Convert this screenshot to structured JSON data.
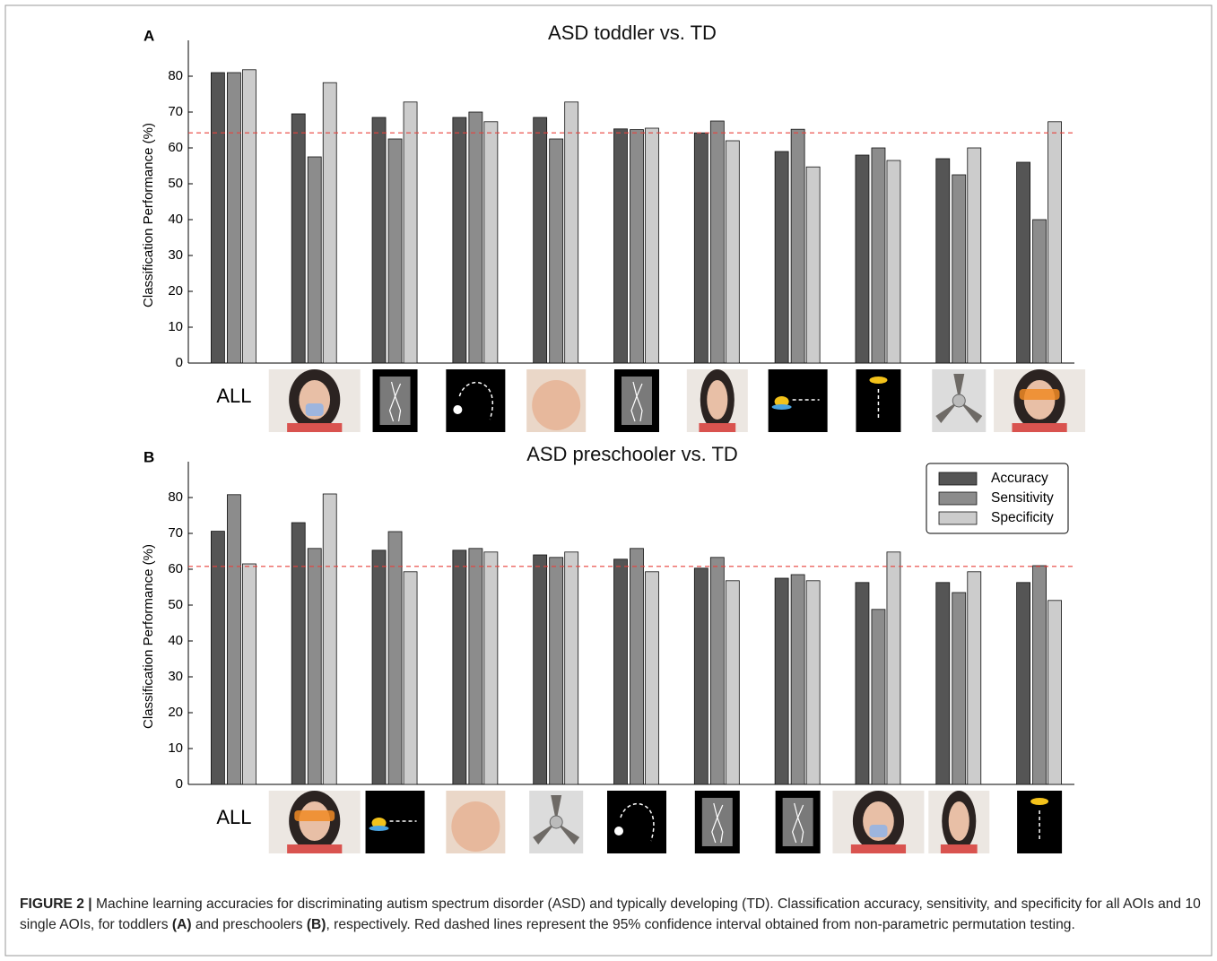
{
  "chart_data": [
    {
      "type": "bar",
      "panel_label": "A",
      "title": "ASD toddler vs. TD",
      "y_label": "Classification Performance (%)",
      "categories": [
        "ALL",
        null,
        null,
        null,
        null,
        null,
        null,
        null,
        null,
        null,
        null
      ],
      "series": [
        {
          "color": "#555555",
          "values": [
            81,
            69.5,
            68.5,
            68.5,
            68.5,
            65.3,
            64.2,
            59,
            58,
            57,
            56
          ]
        },
        {
          "color": "#8c8c8c",
          "values": [
            81,
            57.5,
            62.5,
            70,
            62.5,
            65.1,
            67.5,
            65.2,
            60,
            52.5,
            40
          ]
        },
        {
          "color": "#cccccc",
          "values": [
            81.8,
            78.2,
            72.8,
            67.3,
            72.8,
            65.5,
            62,
            54.7,
            56.5,
            60,
            67.3
          ]
        }
      ],
      "ylim": [
        0,
        90
      ],
      "yticks": [
        0,
        10,
        20,
        30,
        40,
        50,
        60,
        70,
        80
      ],
      "threshold": 64.2,
      "threshold_color": "#e8413c"
    },
    {
      "type": "bar",
      "panel_label": "B",
      "title": "ASD preschooler vs. TD",
      "y_label": "Classification Performance (%)",
      "categories": [
        "ALL",
        null,
        null,
        null,
        null,
        null,
        null,
        null,
        null,
        null,
        null
      ],
      "series": [
        {
          "name": "Accuracy",
          "color": "#555555",
          "values": [
            70.6,
            73,
            65.3,
            65.3,
            64,
            62.8,
            60.3,
            57.5,
            56.3,
            56.3,
            56.3
          ]
        },
        {
          "name": "Sensitivity",
          "color": "#8c8c8c",
          "values": [
            80.8,
            65.8,
            70.5,
            65.8,
            63.3,
            65.8,
            63.3,
            58.5,
            48.8,
            53.5,
            61
          ]
        },
        {
          "name": "Specificity",
          "color": "#cccccc",
          "values": [
            61.5,
            81,
            59.3,
            64.8,
            64.8,
            59.3,
            56.8,
            56.8,
            64.8,
            59.3,
            51.3
          ]
        }
      ],
      "ylim": [
        0,
        90
      ],
      "yticks": [
        0,
        10,
        20,
        30,
        40,
        50,
        60,
        70,
        80
      ],
      "threshold": 60.8,
      "threshold_color": "#e8413c",
      "legend": "upper right"
    }
  ],
  "caption": {
    "segments": [
      "FIGURE 2 |",
      " Machine learning accuracies for discriminating autism spectrum disorder (ASD) and typically developing (TD). Classification accuracy, sensitivity, and specificity for all AOIs and 10 single AOIs, for toddlers ",
      "(A)",
      " and preschoolers ",
      "(B)",
      ", respectively. Red dashed lines represent the 95% confidence interval obtained from non-parametric permutation testing."
    ]
  }
}
